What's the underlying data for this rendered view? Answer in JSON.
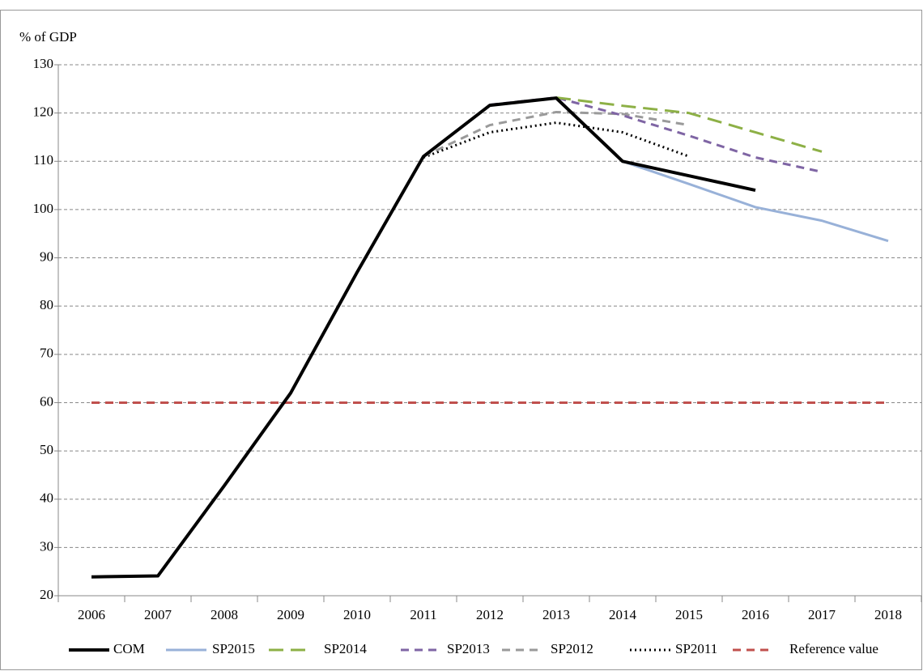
{
  "chart_data": {
    "type": "line",
    "y_label": "% of GDP",
    "categories": [
      "2006",
      "2007",
      "2008",
      "2009",
      "2010",
      "2011",
      "2012",
      "2013",
      "2014",
      "2015",
      "2016",
      "2017",
      "2018"
    ],
    "ylim": [
      20,
      130
    ],
    "yticks": [
      20,
      30,
      40,
      50,
      60,
      70,
      80,
      90,
      100,
      110,
      120,
      130
    ],
    "grid": true,
    "legend": "bottom",
    "series": [
      {
        "name": "COM",
        "color": "#000000",
        "dash": "solid",
        "values": [
          23.9,
          24.1,
          42.8,
          62,
          87,
          111,
          121.6,
          123.1,
          110,
          107,
          104,
          null,
          null
        ]
      },
      {
        "name": "SP2015",
        "color": "#98b1d8",
        "dash": "solid",
        "values": [
          null,
          null,
          null,
          null,
          null,
          null,
          null,
          null,
          110,
          105.3,
          100.5,
          97.7,
          93.5
        ]
      },
      {
        "name": "SP2014",
        "color": "#8db046",
        "dash": "longdash",
        "values": [
          null,
          null,
          null,
          null,
          null,
          null,
          null,
          123.2,
          121.5,
          120,
          116,
          112,
          null
        ]
      },
      {
        "name": "SP2013",
        "color": "#7f65a4",
        "dash": "dashed",
        "values": [
          null,
          null,
          null,
          null,
          null,
          null,
          121.7,
          123.2,
          119.5,
          115.3,
          110.8,
          107.8,
          null
        ]
      },
      {
        "name": "SP2012",
        "color": "#9a9a9a",
        "dash": "dashed",
        "values": [
          null,
          null,
          null,
          null,
          null,
          111,
          117.5,
          120.2,
          119.8,
          117.5,
          null,
          null,
          null
        ]
      },
      {
        "name": "SP2011",
        "color": "#000000",
        "dash": "dotted",
        "values": [
          null,
          null,
          null,
          null,
          null,
          110.8,
          116,
          118,
          116,
          111,
          null,
          null,
          null
        ]
      },
      {
        "name": "Reference value",
        "color": "#c0504d",
        "dash": "dashed",
        "values": [
          60,
          60,
          60,
          60,
          60,
          60,
          60,
          60,
          60,
          60,
          60,
          60,
          60
        ]
      }
    ]
  }
}
